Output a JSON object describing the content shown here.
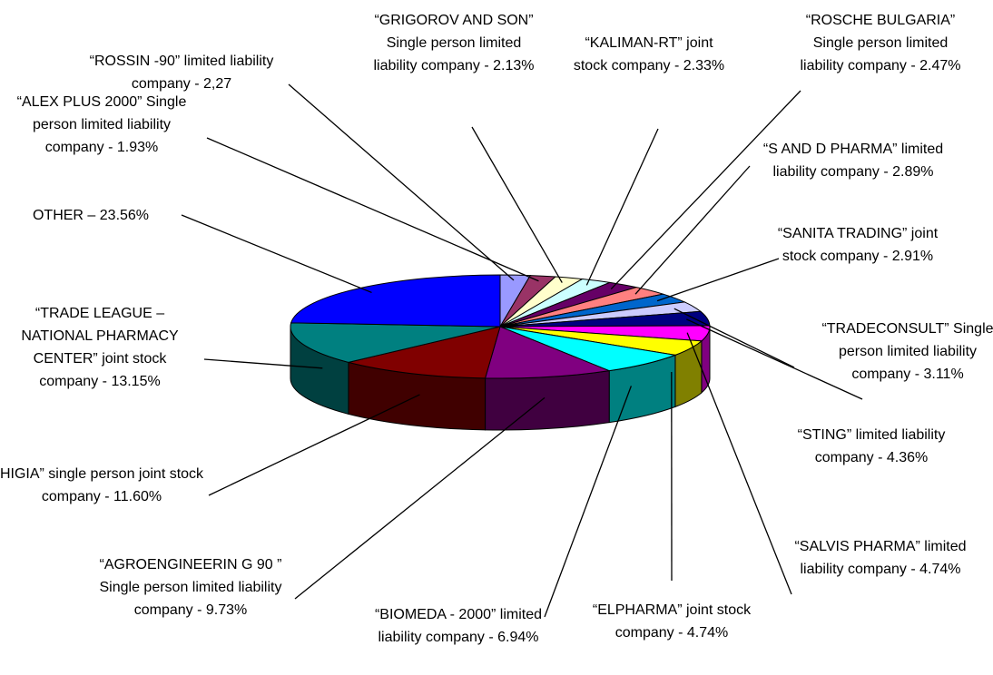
{
  "chart_data": {
    "type": "pie",
    "three_d": true,
    "categories": [
      "“ROSSIN -90” limited liability company -",
      "“ALEX PLUS 2000” Single person limited liability company -",
      "“GRIGOROV AND SON” Single person limited liability company -",
      "“KALIMAN-RT” joint stock company -",
      "“ROSCHE BULGARIA” Single person limited liability company -",
      "“S AND D PHARMA” limited liability company -",
      "“SANITA TRADING” joint stock company -",
      "“TRADECONSULT” Single person limited liability company -",
      "“STING” limited liability company -",
      "“SALVIS PHARMA” limited liability company -",
      "“ELPHARMA” joint stock company -",
      "“BIOMEDA - 2000” limited liability company -",
      "“AGROENGINEERIN G 90 ” Single person limited liability company -",
      "HIGIA” single person joint stock company -",
      "“TRADE LEAGUE – NATIONAL PHARMACY CENTER” joint stock company -",
      "OTHER –"
    ],
    "values": [
      2.27,
      1.93,
      2.13,
      2.33,
      2.47,
      2.89,
      2.91,
      3.11,
      4.36,
      4.74,
      4.74,
      6.94,
      9.73,
      11.6,
      13.15,
      23.56
    ],
    "value_labels": [
      "2,27",
      "1.93%",
      "2.13%",
      "2.33%",
      "2.47%",
      "2.89%",
      "2.91%",
      "3.11%",
      "4.36%",
      "4.74%",
      "4.74%",
      "6.94%",
      "9.73%",
      "11.60%",
      "13.15%",
      "23.56%"
    ],
    "colors": [
      "#9999ff",
      "#993366",
      "#ffffcc",
      "#ccffff",
      "#660066",
      "#ff8080",
      "#0066cc",
      "#ccccff",
      "#000080",
      "#ff00ff",
      "#ffff00",
      "#00ffff",
      "#800080",
      "#800000",
      "#008080",
      "#0000ff"
    ]
  }
}
